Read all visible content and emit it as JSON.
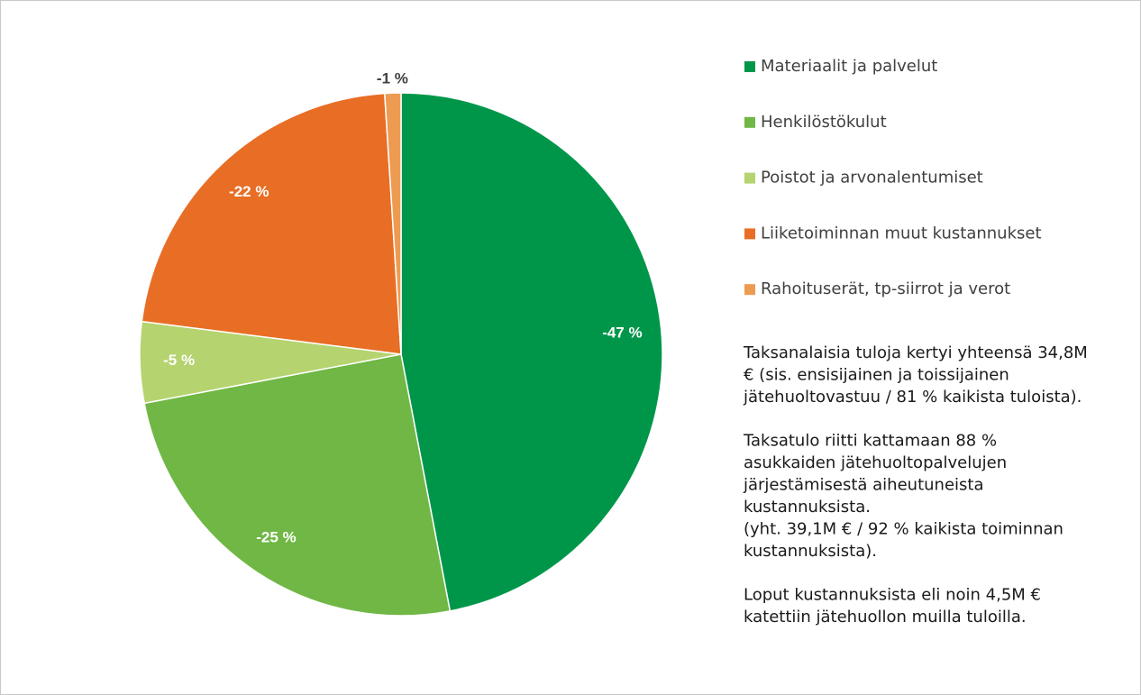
{
  "chart_data": {
    "type": "pie",
    "categories": [
      "Materiaalit ja palvelut",
      "Henkilöstökulut",
      "Poistot ja arvonalentumiset",
      "Liiketoiminnan muut kustannukset",
      "Rahoituserät, tp-siirrot ja verot"
    ],
    "values": [
      -47,
      -25,
      -5,
      -22,
      -1
    ],
    "value_labels": [
      "-47 %",
      "-25 %",
      "-5 %",
      "-22 %",
      "-1 %"
    ],
    "colors": [
      "#00964a",
      "#70b745",
      "#b5d36f",
      "#e86e25",
      "#ee9b52"
    ],
    "notes": [
      [
        "Taksanalaisia tuloja kertyi yhteensä 34,8M",
        "€ (sis. ensisijainen ja toissijainen",
        "jätehuoltovastuu / 81 % kaikista tuloista)."
      ],
      [
        "Taksatulo riitti kattamaan 88 %",
        "asukkaiden jätehuoltopalvelujen",
        "järjestämisestä aiheutuneista",
        "kustannuksista.",
        "(yht. 39,1M € / 92 % kaikista toiminnan",
        "kustannuksista)."
      ],
      [
        "Loput kustannuksista eli noin 4,5M €",
        "katettiin jätehuollon muilla tuloilla."
      ]
    ]
  }
}
